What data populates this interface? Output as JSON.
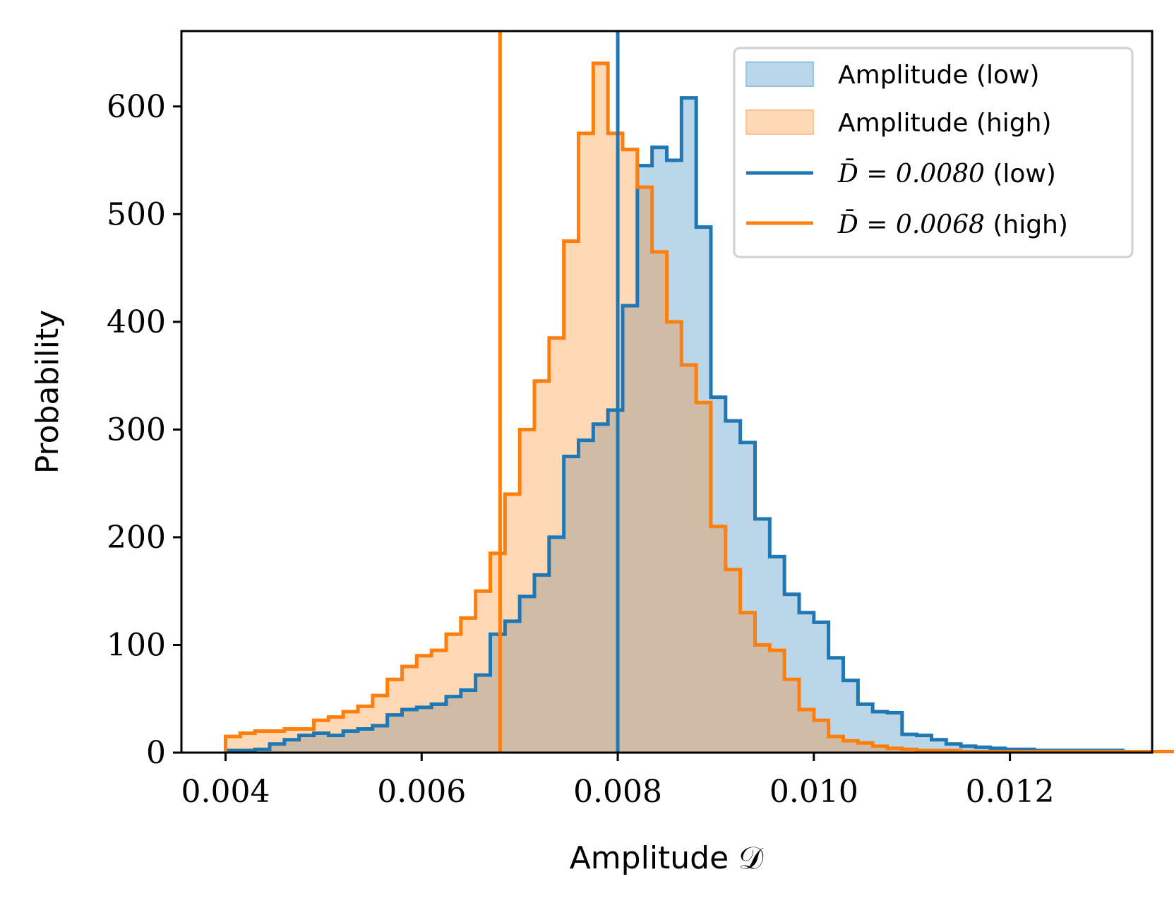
{
  "chart_data": {
    "type": "histogram",
    "title": "",
    "xlabel": "Amplitude 𝒟",
    "ylabel": "Probability",
    "xlim": [
      0.00355,
      0.01345
    ],
    "ylim": [
      0,
      670
    ],
    "xticks": [
      0.004,
      0.006,
      0.008,
      0.01,
      0.012
    ],
    "xtick_labels": [
      "0.004",
      "0.006",
      "0.008",
      "0.010",
      "0.012"
    ],
    "yticks": [
      0,
      100,
      200,
      300,
      400,
      500,
      600
    ],
    "ytick_labels": [
      "0",
      "100",
      "200",
      "300",
      "400",
      "500",
      "600"
    ],
    "bin_start": 0.004,
    "bin_width": 0.00015,
    "grid": false,
    "legend_position": "top-right",
    "series": [
      {
        "name": "Amplitude (low)",
        "color": "#1f77b4",
        "fill_color": "#bad6ea",
        "values": [
          2,
          2,
          3,
          8,
          12,
          16,
          18,
          16,
          20,
          22,
          25,
          35,
          40,
          42,
          45,
          52,
          58,
          72,
          110,
          122,
          145,
          165,
          200,
          275,
          290,
          305,
          318,
          415,
          545,
          562,
          550,
          608,
          488,
          330,
          308,
          288,
          217,
          182,
          147,
          130,
          121,
          88,
          67,
          45,
          38,
          37,
          17,
          16,
          12,
          8,
          6,
          5,
          4,
          3,
          3,
          2,
          2,
          2,
          2,
          2,
          2,
          1,
          1,
          1,
          1,
          1,
          1,
          1,
          1,
          1
        ]
      },
      {
        "name": "Amplitude (high)",
        "color": "#ff7f0e",
        "fill_color": "#ffd8b6",
        "values": [
          15,
          18,
          20,
          20,
          22,
          22,
          30,
          33,
          38,
          43,
          53,
          68,
          80,
          90,
          95,
          110,
          125,
          150,
          185,
          240,
          300,
          345,
          385,
          475,
          575,
          640,
          575,
          560,
          525,
          465,
          400,
          360,
          325,
          210,
          170,
          130,
          100,
          95,
          68,
          40,
          30,
          15,
          11,
          9,
          6,
          4,
          3,
          2,
          2,
          2,
          1,
          1,
          1,
          1,
          1,
          1,
          1,
          1,
          1,
          1,
          1,
          1,
          1,
          1,
          1,
          1,
          1,
          1,
          1,
          1
        ]
      }
    ],
    "mean_lines": [
      {
        "label_prefix": "D̄ = 0.0080",
        "label_suffix": " (low)",
        "value": 0.008,
        "color": "#1f77b4"
      },
      {
        "label_prefix": "D̄ = 0.0068",
        "label_suffix": " (high)",
        "value": 0.0068,
        "color": "#ff7f0e"
      }
    ]
  }
}
